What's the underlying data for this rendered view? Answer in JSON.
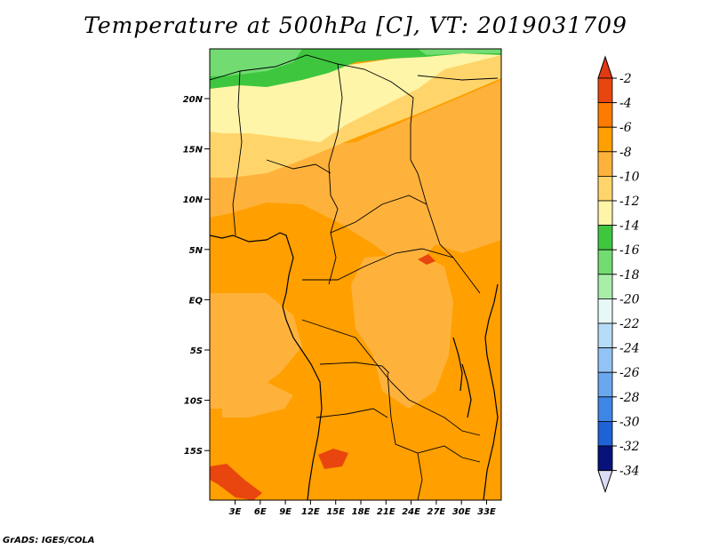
{
  "title": "Temperature at 500hPa [C], VT: 2019031709",
  "credit": "GrADS: IGES/COLA",
  "map": {
    "lon_ticks": [
      "3E",
      "6E",
      "9E",
      "12E",
      "15E",
      "18E",
      "21E",
      "24E",
      "27E",
      "30E",
      "33E"
    ],
    "lat_ticks": [
      "20N",
      "15N",
      "10N",
      "5N",
      "EQ",
      "5S",
      "10S",
      "15S"
    ]
  },
  "colorbar": {
    "labels": [
      "-2",
      "-4",
      "-6",
      "-8",
      "-10",
      "-12",
      "-14",
      "-16",
      "-18",
      "-20",
      "-22",
      "-24",
      "-26",
      "-28",
      "-30",
      "-32",
      "-34"
    ],
    "colors": [
      "#e8460e",
      "#ff7b00",
      "#ff9f00",
      "#ffb23b",
      "#ffd56b",
      "#fff5a8",
      "#3fc63f",
      "#72dc72",
      "#a8eda8",
      "#e6f9f6",
      "#b6dcf7",
      "#92c3f4",
      "#6aa7ee",
      "#3d86e6",
      "#1e62d6",
      "#0d40b8",
      "#08127a"
    ],
    "top_color": "#e03a10",
    "bottom_color": "#dcdcf5"
  }
}
